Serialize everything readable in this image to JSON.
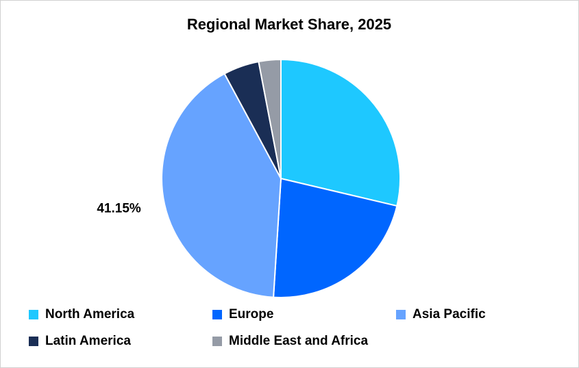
{
  "chart_data": {
    "type": "pie",
    "title": "Regional Market Share, 2025",
    "categories": [
      "North America",
      "Europe",
      "Asia Pacific",
      "Latin America",
      "Middle East and Africa"
    ],
    "values": [
      28.7,
      22.3,
      41.15,
      4.85,
      3.0
    ],
    "value_labels": [
      null,
      null,
      "41.15%",
      null,
      null
    ],
    "colors": [
      "#1ec8ff",
      "#0066ff",
      "#66a3ff",
      "#1a2e55",
      "#959ba6"
    ],
    "legend": "bottom"
  }
}
